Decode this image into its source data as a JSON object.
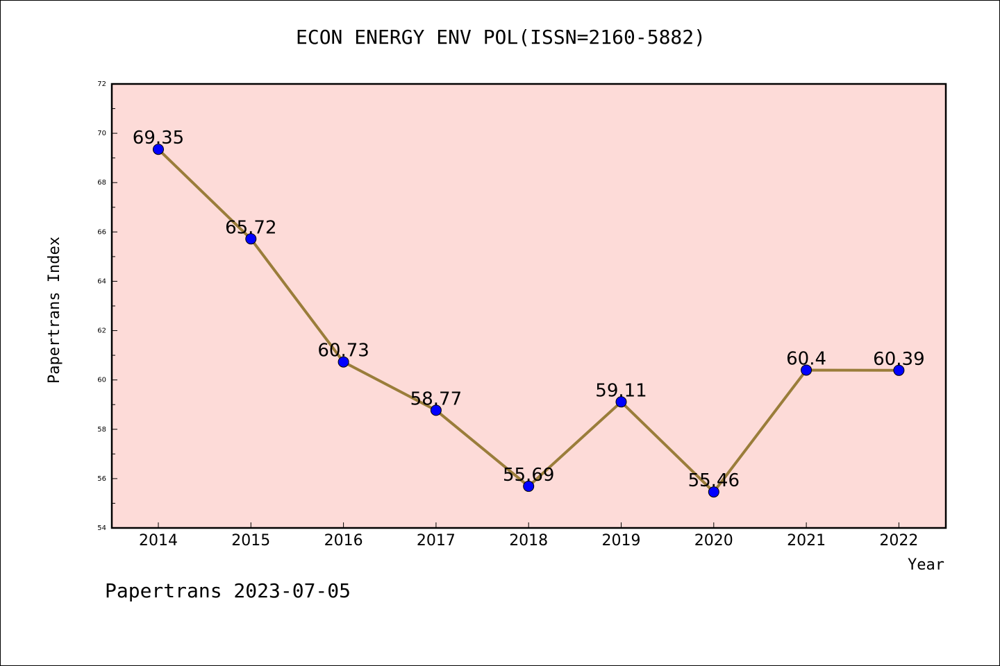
{
  "chart_data": {
    "type": "line",
    "title": "ECON ENERGY ENV POL(ISSN=2160-5882)",
    "xlabel": "Year",
    "ylabel": "Papertrans Index",
    "categories": [
      "2014",
      "2015",
      "2016",
      "2017",
      "2018",
      "2019",
      "2020",
      "2021",
      "2022"
    ],
    "series": [
      {
        "values": [
          69.35,
          65.72,
          60.73,
          58.77,
          55.69,
          59.11,
          55.46,
          60.4,
          60.39
        ]
      }
    ],
    "data_labels": [
      "69.35",
      "65.72",
      "60.73",
      "58.77",
      "55.69",
      "59.11",
      "55.46",
      "60.4",
      "60.39"
    ],
    "ylim": [
      54,
      72
    ],
    "y_ticks": [
      "54",
      "56",
      "58",
      "60",
      "62",
      "64",
      "66",
      "68",
      "70",
      "72"
    ],
    "grid": false,
    "colors": {
      "plot_background": "#fddbd8",
      "line": "#9a7d3a",
      "marker": "#0000ff"
    }
  },
  "footer": {
    "text": "Papertrans 2023-07-05"
  }
}
